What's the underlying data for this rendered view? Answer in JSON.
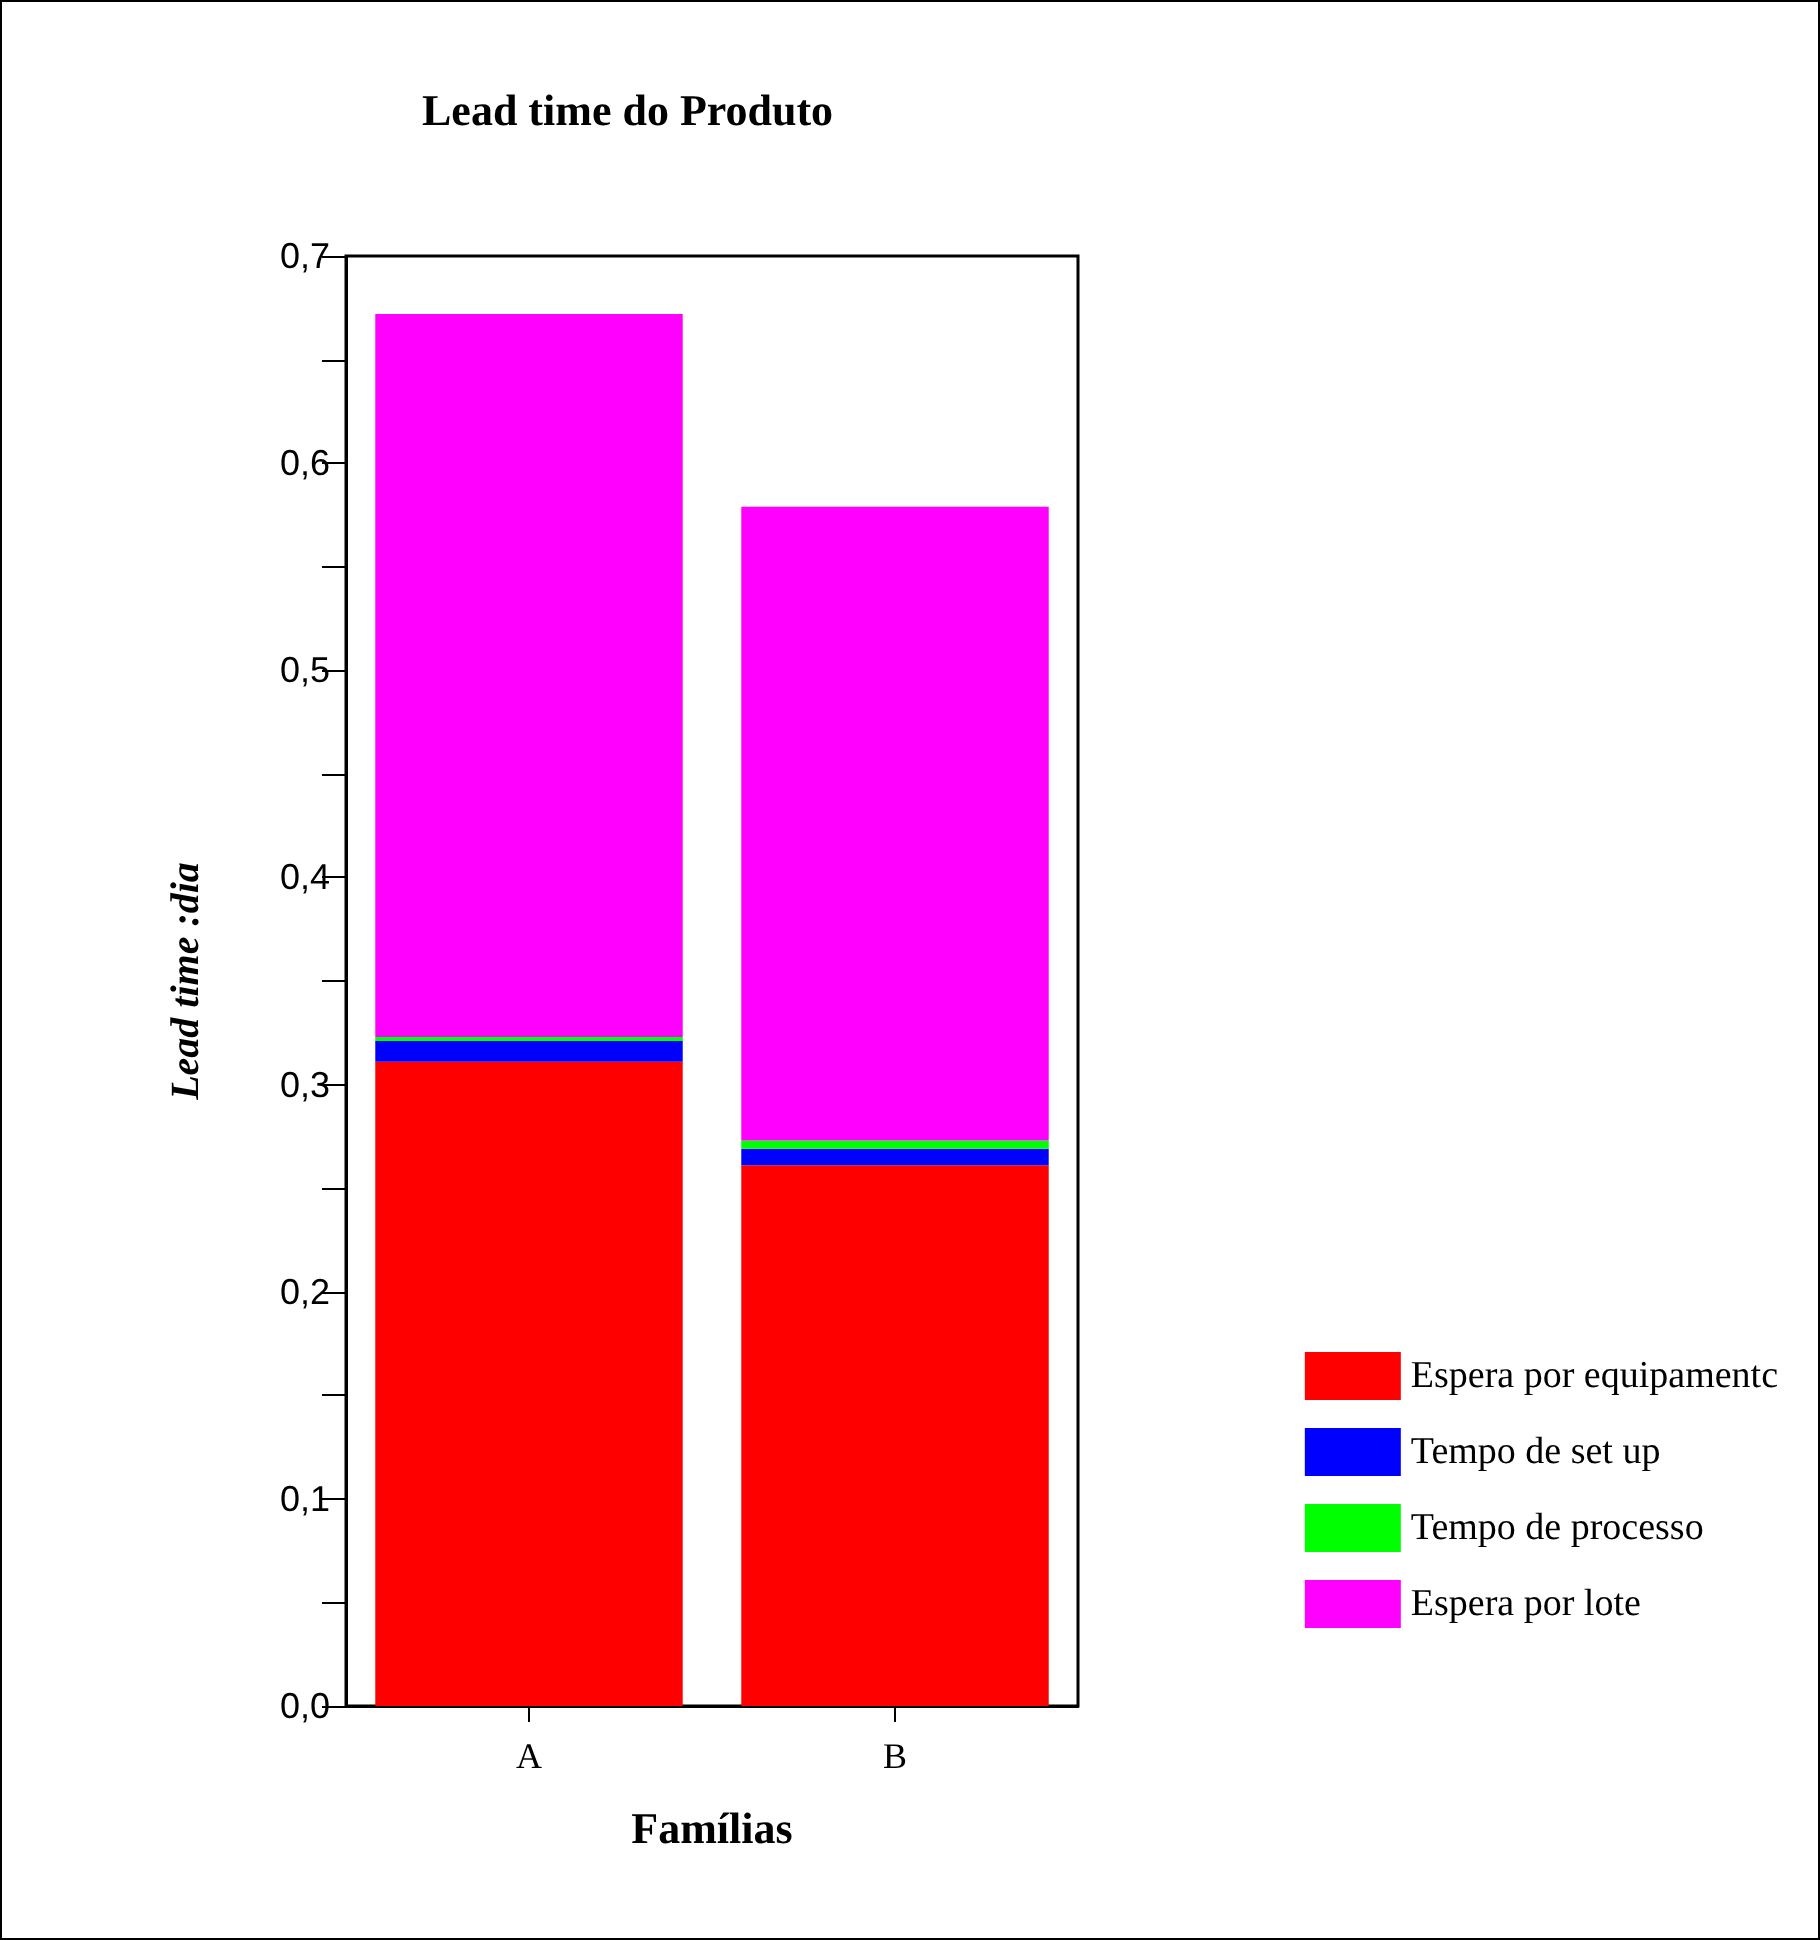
{
  "chart_data": {
    "type": "bar",
    "title": "Lead time do Produto",
    "xlabel": "Famílias",
    "ylabel": "Lead time :dia",
    "categories": [
      "A",
      "B"
    ],
    "stacked": true,
    "series": [
      {
        "name": "Espera por equipamentc",
        "color": "#ff0000",
        "values": [
          0.311,
          0.261
        ]
      },
      {
        "name": "Tempo de set up",
        "color": "#0000ff",
        "values": [
          0.01,
          0.008
        ]
      },
      {
        "name": "Tempo de processo",
        "color": "#00ff00",
        "values": [
          0.002,
          0.004
        ]
      },
      {
        "name": "Espera por lote",
        "color": "#ff00ff",
        "values": [
          0.349,
          0.306
        ]
      }
    ],
    "ylim": [
      0,
      0.7
    ],
    "yticks": [
      {
        "value": 0,
        "label": "0,0"
      },
      {
        "value": 0.05,
        "label": null
      },
      {
        "value": 0.1,
        "label": "0,1"
      },
      {
        "value": 0.15,
        "label": null
      },
      {
        "value": 0.2,
        "label": "0,2"
      },
      {
        "value": 0.25,
        "label": null
      },
      {
        "value": 0.3,
        "label": "0,3"
      },
      {
        "value": 0.35,
        "label": null
      },
      {
        "value": 0.4,
        "label": "0,4"
      },
      {
        "value": 0.45,
        "label": null
      },
      {
        "value": 0.5,
        "label": "0,5"
      },
      {
        "value": 0.55,
        "label": null
      },
      {
        "value": 0.6,
        "label": "0,6"
      },
      {
        "value": 0.65,
        "label": null
      },
      {
        "value": 0.7,
        "label": "0,7"
      }
    ],
    "grid": false,
    "legend": "bottom right"
  }
}
